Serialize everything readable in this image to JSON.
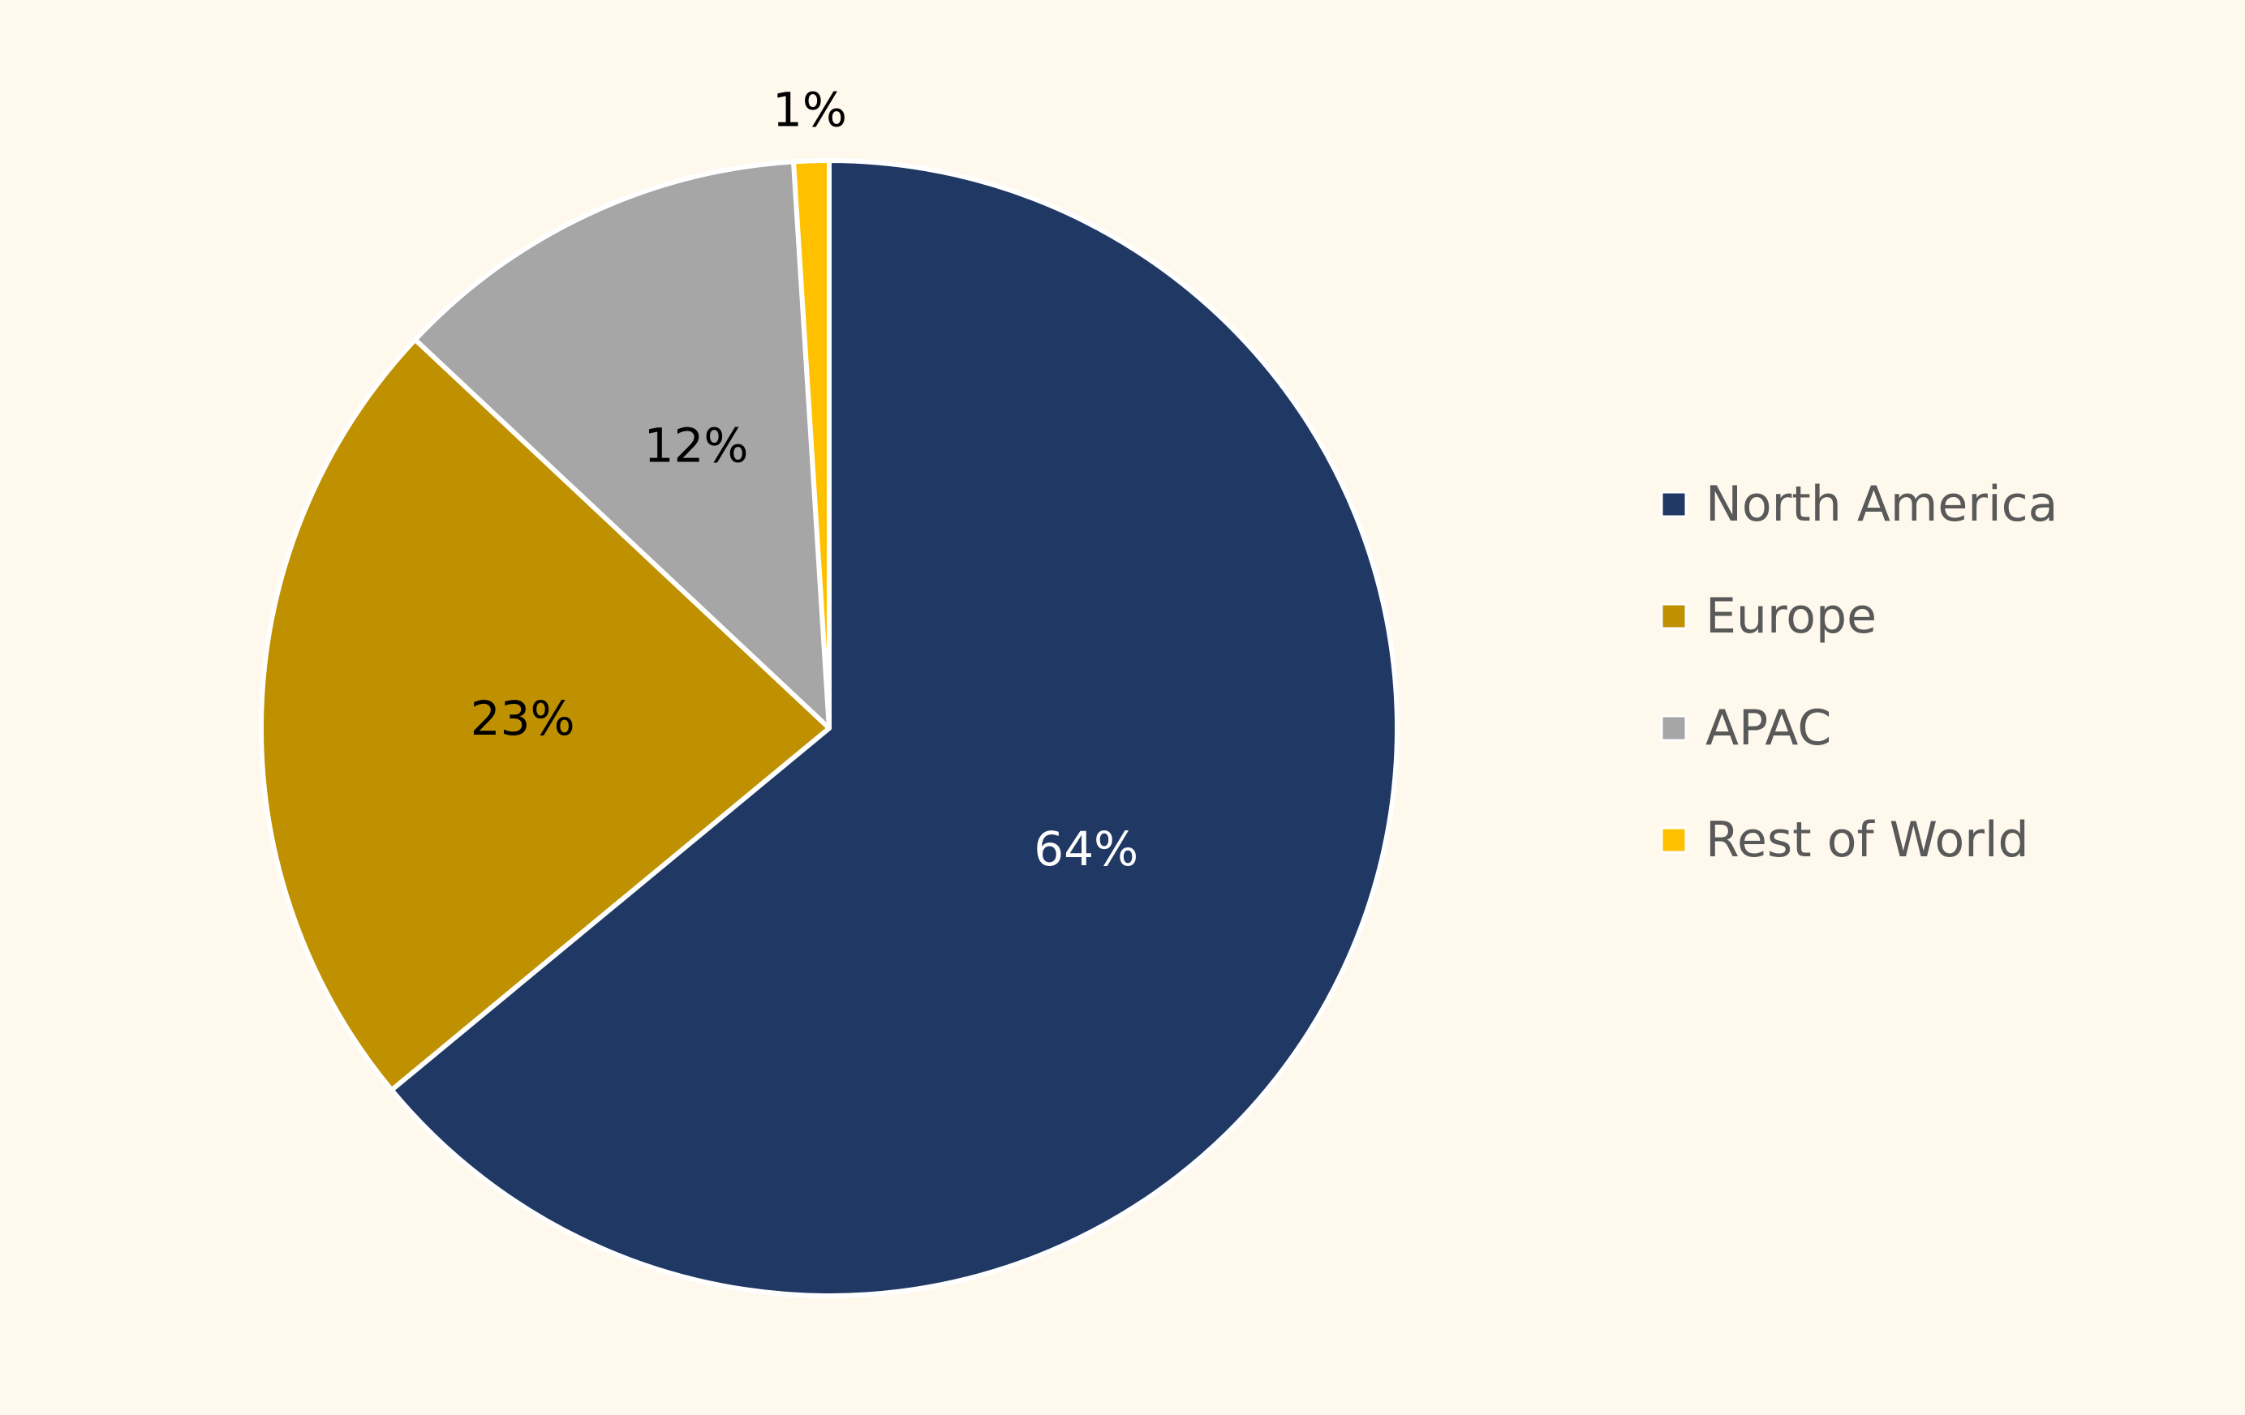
{
  "chart_data": {
    "type": "pie",
    "categories": [
      "North America",
      "Europe",
      "APAC",
      "Rest of World"
    ],
    "values": [
      64,
      23,
      12,
      1
    ],
    "data_labels": [
      "64%",
      "23%",
      "12%",
      "1%"
    ],
    "colors": [
      "#203864",
      "#BF9000",
      "#A6A6A6",
      "#FFC000"
    ],
    "label_colors": [
      "#FFFFFF",
      "#000000",
      "#000000",
      "#000000"
    ],
    "background": "#FFF8EC",
    "start_angle_deg": 0,
    "direction": "clockwise",
    "legend": {
      "placement": "right",
      "items": [
        "North America",
        "Europe",
        "APAC",
        "Rest of World"
      ]
    }
  }
}
